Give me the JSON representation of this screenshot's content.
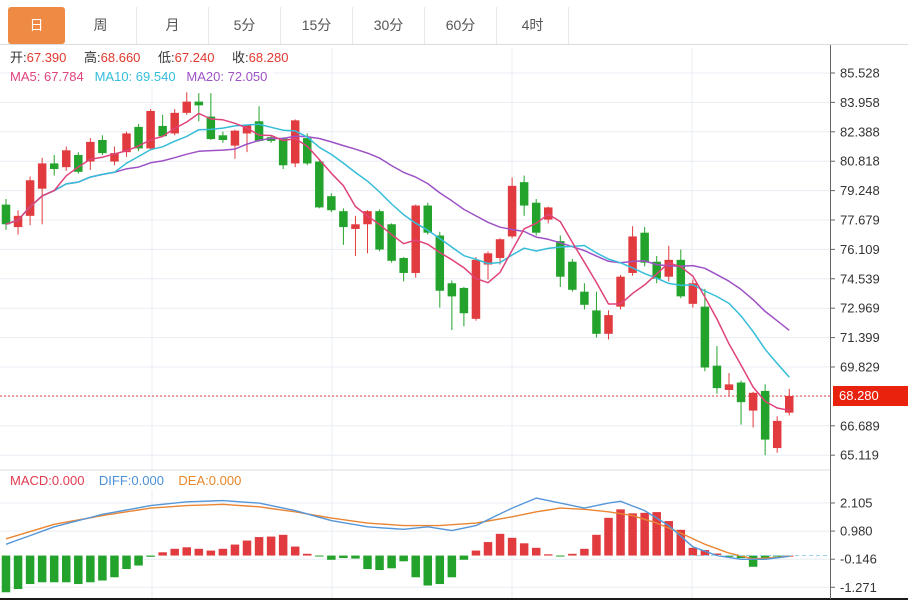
{
  "tabs": {
    "items": [
      {
        "label": "日",
        "active": true
      },
      {
        "label": "周",
        "active": false
      },
      {
        "label": "月",
        "active": false
      },
      {
        "label": "5分",
        "active": false
      },
      {
        "label": "15分",
        "active": false
      },
      {
        "label": "30分",
        "active": false
      },
      {
        "label": "60分",
        "active": false
      },
      {
        "label": "4时",
        "active": false
      }
    ]
  },
  "legend": {
    "ohlc": [
      {
        "label": "开:",
        "value": "67.390"
      },
      {
        "label": "高:",
        "value": "68.660"
      },
      {
        "label": "低:",
        "value": "67.240"
      },
      {
        "label": "收:",
        "value": "68.280"
      }
    ],
    "ma": [
      {
        "label": "MA5:",
        "value": "67.784",
        "color": "#e0437c"
      },
      {
        "label": "MA10:",
        "value": "69.540",
        "color": "#35bdd8"
      },
      {
        "label": "MA20:",
        "value": "72.050",
        "color": "#9d52c6"
      }
    ],
    "macd": [
      {
        "label": "MACD:",
        "value": "0.000",
        "color": "#e03b51"
      },
      {
        "label": "DIFF:",
        "value": "0.000",
        "color": "#4a90d9"
      },
      {
        "label": "DEA:",
        "value": "0.000",
        "color": "#e8872a"
      }
    ]
  },
  "axis": {
    "price_ticks": [
      "85.528",
      "83.958",
      "82.388",
      "80.818",
      "79.248",
      "77.679",
      "76.109",
      "74.539",
      "72.969",
      "71.399",
      "69.829",
      "66.689",
      "65.119"
    ],
    "macd_ticks": [
      "2.105",
      "0.980",
      "-0.146",
      "-1.271"
    ],
    "badge": "68.280"
  },
  "colors": {
    "up": "#e13b3f",
    "down": "#24a32c",
    "ma5": "#e0437c",
    "ma10": "#35bdd8",
    "ma20": "#9d52c6",
    "diff": "#5596d8",
    "dea": "#e98634",
    "grid": "#e8edf3",
    "axis_line": "#666666",
    "axis_text": "#333333",
    "value_red": "#e0392f",
    "badge_bg": "#e8220c",
    "tab_active_bg": "#ee8a43",
    "dotted_line": "#e04a42",
    "zero_dash": "#9ad4ea",
    "divider": "#d9dee4",
    "bottom_line": "#1a1a1a"
  },
  "chart_data": {
    "type": "candlestick",
    "title": "Daily crude-oil style K-line with MA5/MA10/MA20 and MACD sub-chart",
    "last_price": 68.28,
    "price_axis": {
      "max": 85.528,
      "min": 65.119,
      "step": 1.57
    },
    "macd_axis": {
      "ticks": [
        2.105,
        0.98,
        -0.146,
        -1.271
      ],
      "step": 1.125
    },
    "candles": [
      [
        78.5,
        78.8,
        77.15,
        77.45
      ],
      [
        77.3,
        78.2,
        76.9,
        77.9
      ],
      [
        77.9,
        80.0,
        77.4,
        79.8
      ],
      [
        79.35,
        81.0,
        77.45,
        80.7
      ],
      [
        80.7,
        81.15,
        80.05,
        80.4
      ],
      [
        80.5,
        81.6,
        80.3,
        81.4
      ],
      [
        81.15,
        81.3,
        80.15,
        80.25
      ],
      [
        80.8,
        82.05,
        80.35,
        81.85
      ],
      [
        81.95,
        82.2,
        81.15,
        81.25
      ],
      [
        80.8,
        81.6,
        80.6,
        81.25
      ],
      [
        81.3,
        82.4,
        81.05,
        82.3
      ],
      [
        82.65,
        82.8,
        81.35,
        81.5
      ],
      [
        81.5,
        83.6,
        81.4,
        83.5
      ],
      [
        82.7,
        83.3,
        82.1,
        82.15
      ],
      [
        82.3,
        83.6,
        82.2,
        83.4
      ],
      [
        83.4,
        84.5,
        83.3,
        84.0
      ],
      [
        84.0,
        84.45,
        82.95,
        83.8
      ],
      [
        83.2,
        84.45,
        81.95,
        82.0
      ],
      [
        82.2,
        82.4,
        81.8,
        81.95
      ],
      [
        81.65,
        82.5,
        80.95,
        82.45
      ],
      [
        82.3,
        82.75,
        81.3,
        82.75
      ],
      [
        82.95,
        83.75,
        81.85,
        81.9
      ],
      [
        82.1,
        82.2,
        81.8,
        81.9
      ],
      [
        82.05,
        82.1,
        80.4,
        80.6
      ],
      [
        80.7,
        83.05,
        80.5,
        83.0
      ],
      [
        82.05,
        82.3,
        80.6,
        80.7
      ],
      [
        80.8,
        80.85,
        78.3,
        78.35
      ],
      [
        78.95,
        79.1,
        78.1,
        78.2
      ],
      [
        78.15,
        78.3,
        76.35,
        77.3
      ],
      [
        77.2,
        77.9,
        75.75,
        77.45
      ],
      [
        77.45,
        78.2,
        75.9,
        78.15
      ],
      [
        78.15,
        78.25,
        76.0,
        76.1
      ],
      [
        77.45,
        77.5,
        75.4,
        75.5
      ],
      [
        75.65,
        75.7,
        74.4,
        74.85
      ],
      [
        74.85,
        78.5,
        74.6,
        78.45
      ],
      [
        78.45,
        78.6,
        76.9,
        77.0
      ],
      [
        76.85,
        77.05,
        73.0,
        73.9
      ],
      [
        74.3,
        74.45,
        71.8,
        73.6
      ],
      [
        74.05,
        74.1,
        72.0,
        72.7
      ],
      [
        72.4,
        75.7,
        72.3,
        75.55
      ],
      [
        75.3,
        76.0,
        74.5,
        75.9
      ],
      [
        75.65,
        76.7,
        75.3,
        76.65
      ],
      [
        76.8,
        79.95,
        76.7,
        79.5
      ],
      [
        79.7,
        80.05,
        77.9,
        78.45
      ],
      [
        78.6,
        78.8,
        76.85,
        77.0
      ],
      [
        77.7,
        78.4,
        77.5,
        78.35
      ],
      [
        76.55,
        76.85,
        74.1,
        74.65
      ],
      [
        75.45,
        75.6,
        73.85,
        73.95
      ],
      [
        73.85,
        74.3,
        72.9,
        73.15
      ],
      [
        72.85,
        73.85,
        71.4,
        71.6
      ],
      [
        71.6,
        72.85,
        71.3,
        72.6
      ],
      [
        73.05,
        74.75,
        72.9,
        74.65
      ],
      [
        74.85,
        77.35,
        74.7,
        76.8
      ],
      [
        77.0,
        77.3,
        75.2,
        75.4
      ],
      [
        75.45,
        75.75,
        74.3,
        74.55
      ],
      [
        74.65,
        76.3,
        74.4,
        75.55
      ],
      [
        75.55,
        76.1,
        73.5,
        73.6
      ],
      [
        73.2,
        74.5,
        73.0,
        74.3
      ],
      [
        73.05,
        74.0,
        69.6,
        69.8
      ],
      [
        69.9,
        70.95,
        68.4,
        68.7
      ],
      [
        68.6,
        69.5,
        68.25,
        68.9
      ],
      [
        69.0,
        69.1,
        66.75,
        67.95
      ],
      [
        67.5,
        68.5,
        66.6,
        68.45
      ],
      [
        68.55,
        68.9,
        65.12,
        65.95
      ],
      [
        65.5,
        67.2,
        65.25,
        66.95
      ],
      [
        67.39,
        68.66,
        67.24,
        68.28
      ]
    ],
    "macd_hist": [
      -1.47,
      -1.34,
      -1.14,
      -1.07,
      -1.07,
      -1.07,
      -1.14,
      -1.07,
      -1.0,
      -0.87,
      -0.54,
      -0.4,
      -0.05,
      0.13,
      0.27,
      0.33,
      0.27,
      0.2,
      0.27,
      0.44,
      0.6,
      0.74,
      0.76,
      0.83,
      0.36,
      0.07,
      -0.03,
      -0.17,
      -0.1,
      -0.12,
      -0.54,
      -0.58,
      -0.51,
      -0.23,
      -0.87,
      -1.2,
      -1.14,
      -0.87,
      -0.17,
      0.2,
      0.54,
      0.87,
      0.71,
      0.49,
      0.31,
      0.05,
      -0.04,
      0.07,
      0.27,
      0.83,
      1.51,
      1.85,
      1.69,
      1.71,
      1.74,
      1.38,
      1.03,
      0.31,
      0.22,
      0.08,
      -0.05,
      -0.1,
      -0.45,
      -0.12,
      -0.03,
      0.0
    ],
    "diff_points": [
      [
        0,
        0.45
      ],
      [
        4,
        1.15
      ],
      [
        8,
        1.65
      ],
      [
        12,
        2.0
      ],
      [
        15,
        2.15
      ],
      [
        18,
        2.2
      ],
      [
        21,
        2.1
      ],
      [
        24,
        1.8
      ],
      [
        27,
        1.4
      ],
      [
        30,
        1.15
      ],
      [
        33,
        1.05
      ],
      [
        35,
        1.15
      ],
      [
        37,
        1.0
      ],
      [
        39,
        1.2
      ],
      [
        42,
        1.9
      ],
      [
        44,
        2.3
      ],
      [
        46,
        2.1
      ],
      [
        48,
        1.9
      ],
      [
        50,
        2.1
      ],
      [
        51,
        2.17
      ],
      [
        53,
        1.8
      ],
      [
        55,
        1.2
      ],
      [
        57,
        0.35
      ],
      [
        59,
        0.0
      ],
      [
        61,
        -0.15
      ],
      [
        63,
        -0.15
      ],
      [
        65,
        -0.03
      ]
    ],
    "dea_points": [
      [
        0,
        0.67
      ],
      [
        4,
        1.25
      ],
      [
        8,
        1.6
      ],
      [
        12,
        1.9
      ],
      [
        15,
        2.0
      ],
      [
        18,
        2.05
      ],
      [
        21,
        1.95
      ],
      [
        24,
        1.75
      ],
      [
        27,
        1.5
      ],
      [
        30,
        1.3
      ],
      [
        33,
        1.2
      ],
      [
        36,
        1.2
      ],
      [
        39,
        1.3
      ],
      [
        42,
        1.55
      ],
      [
        44,
        1.75
      ],
      [
        46,
        1.9
      ],
      [
        48,
        1.85
      ],
      [
        50,
        1.75
      ],
      [
        52,
        1.6
      ],
      [
        54,
        1.3
      ],
      [
        56,
        0.9
      ],
      [
        58,
        0.45
      ],
      [
        60,
        0.1
      ],
      [
        62,
        -0.13
      ],
      [
        64,
        -0.08
      ],
      [
        65,
        -0.02
      ]
    ]
  }
}
